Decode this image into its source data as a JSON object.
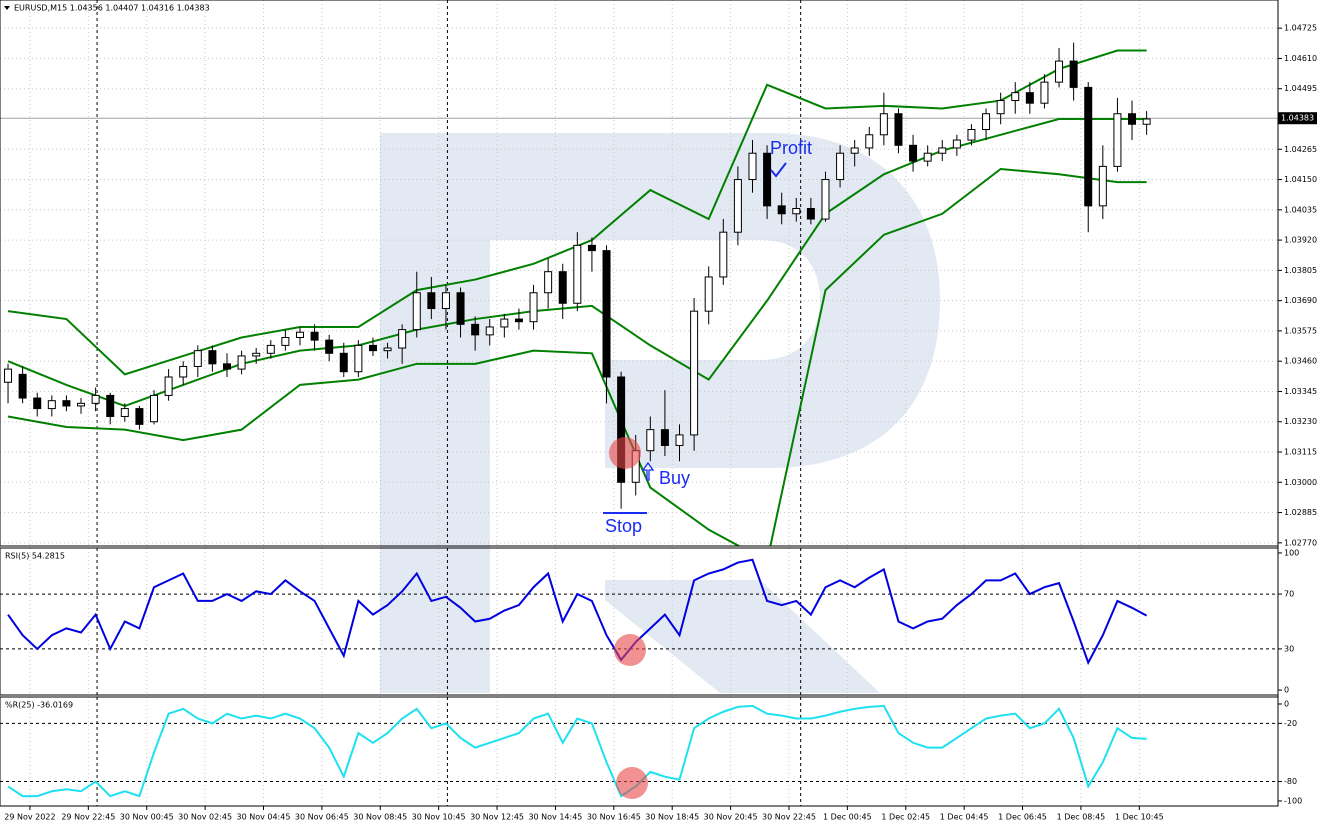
{
  "chart_data": [
    {
      "type": "candlestick",
      "title": "EURUSD,M15  1.04356 1.04407 1.04316 1.04383",
      "xlim": [
        -0.55,
        87
      ],
      "xticks": [
        {
          "value": 1.5,
          "label": "29 Nov 2022"
        },
        {
          "value": 5.5,
          "label": "29 Nov 22:45"
        },
        {
          "value": 9.5,
          "label": "30 Nov 00:45"
        },
        {
          "value": 13.5,
          "label": "30 Nov 02:45"
        },
        {
          "value": 17.5,
          "label": "30 Nov 04:45"
        },
        {
          "value": 21.5,
          "label": "30 Nov 06:45"
        },
        {
          "value": 25.5,
          "label": "30 Nov 08:45"
        },
        {
          "value": 29.5,
          "label": "30 Nov 10:45"
        },
        {
          "value": 33.5,
          "label": "30 Nov 12:45"
        },
        {
          "value": 37.5,
          "label": "30 Nov 14:45"
        },
        {
          "value": 41.5,
          "label": "30 Nov 16:45"
        },
        {
          "value": 45.5,
          "label": "30 Nov 18:45"
        },
        {
          "value": 49.5,
          "label": "30 Nov 20:45"
        },
        {
          "value": 53.5,
          "label": "30 Nov 22:45"
        },
        {
          "value": 57.5,
          "label": "1 Dec 00:45"
        },
        {
          "value": 61.5,
          "label": "1 Dec 02:45"
        },
        {
          "value": 65.5,
          "label": "1 Dec 04:45"
        },
        {
          "value": 69.5,
          "label": "1 Dec 06:45"
        },
        {
          "value": 73.5,
          "label": "1 Dec 08:45"
        },
        {
          "value": 77.5,
          "label": "1 Dec 10:45"
        }
      ],
      "ylim": [
        1.02758,
        1.04832
      ],
      "yticks": [
        1.04725,
        {
          "value": 1.0461,
          "label": "1.04610"
        },
        1.04495,
        1.04265,
        {
          "value": 1.0415,
          "label": "1.04150"
        },
        1.04035,
        {
          "value": 1.0392,
          "label": "1.03920"
        },
        1.03805,
        {
          "value": 1.0369,
          "label": "1.03690"
        },
        1.03575,
        {
          "value": 1.0346,
          "label": "1.03460"
        },
        1.03345,
        {
          "value": 1.0323,
          "label": "1.03230"
        },
        1.03115,
        {
          "value": 1.03,
          "label": "1.03000"
        },
        1.02885,
        {
          "value": 1.0277,
          "label": "1.02770"
        }
      ],
      "grid": true,
      "last_price": 1.04383,
      "separators": [
        6.1,
        30.1,
        54.3
      ],
      "open": [
        1.0338,
        1.0341,
        1.0332,
        1.0328,
        1.0331,
        1.0329,
        1.033,
        1.0333,
        1.0325,
        1.0328,
        1.0323,
        1.0333,
        1.034,
        1.0344,
        1.035,
        1.0345,
        1.0343,
        1.0348,
        1.0349,
        1.0352,
        1.0355,
        1.0357,
        1.0354,
        1.0349,
        1.0342,
        1.0352,
        1.035,
        1.0351,
        1.0358,
        1.0372,
        1.0366,
        1.0372,
        1.036,
        1.0356,
        1.0359,
        1.0362,
        1.0361,
        1.0372,
        1.038,
        1.0368,
        1.039,
        1.0388,
        1.034,
        1.03,
        1.0312,
        1.032,
        1.0314,
        1.0318,
        1.0365,
        1.0378,
        1.0395,
        1.0415,
        1.0425,
        1.0405,
        1.0402,
        1.0404,
        1.04,
        1.0415,
        1.0425,
        1.0427,
        1.0432,
        1.044,
        1.0428,
        1.0422,
        1.0425,
        1.0427,
        1.043,
        1.0434,
        1.044,
        1.0445,
        1.0448,
        1.0444,
        1.0452,
        1.046,
        1.045,
        1.0405,
        1.042,
        1.044,
        1.0436
      ],
      "high": [
        1.0345,
        1.0344,
        1.0334,
        1.0333,
        1.0333,
        1.0332,
        1.0336,
        1.0334,
        1.033,
        1.0329,
        1.0335,
        1.0343,
        1.0346,
        1.0352,
        1.0352,
        1.0349,
        1.035,
        1.0351,
        1.0354,
        1.0358,
        1.0359,
        1.036,
        1.0356,
        1.0353,
        1.0354,
        1.0355,
        1.0353,
        1.036,
        1.038,
        1.0378,
        1.0375,
        1.0374,
        1.0363,
        1.0362,
        1.0364,
        1.0366,
        1.0375,
        1.0385,
        1.0383,
        1.0395,
        1.0393,
        1.039,
        1.0342,
        1.0318,
        1.0325,
        1.0335,
        1.0322,
        1.037,
        1.0382,
        1.04,
        1.042,
        1.043,
        1.0428,
        1.041,
        1.0408,
        1.0408,
        1.0418,
        1.0428,
        1.043,
        1.0435,
        1.0448,
        1.0442,
        1.0432,
        1.0428,
        1.043,
        1.0432,
        1.0436,
        1.0442,
        1.0448,
        1.0452,
        1.0452,
        1.0455,
        1.0465,
        1.0467,
        1.0452,
        1.0428,
        1.0446,
        1.0445,
        1.0441
      ],
      "low": [
        1.033,
        1.033,
        1.0325,
        1.0325,
        1.0327,
        1.0326,
        1.0327,
        1.0322,
        1.0323,
        1.032,
        1.0322,
        1.0331,
        1.0337,
        1.034,
        1.0342,
        1.034,
        1.0341,
        1.0345,
        1.0347,
        1.035,
        1.0352,
        1.035,
        1.0346,
        1.034,
        1.034,
        1.0348,
        1.0347,
        1.0345,
        1.0355,
        1.0362,
        1.0358,
        1.0355,
        1.035,
        1.0352,
        1.0355,
        1.0358,
        1.0358,
        1.0366,
        1.0362,
        1.0365,
        1.038,
        1.033,
        1.029,
        1.0295,
        1.0308,
        1.031,
        1.0308,
        1.0312,
        1.036,
        1.0375,
        1.039,
        1.041,
        1.04,
        1.0398,
        1.0399,
        1.0398,
        1.0399,
        1.0412,
        1.042,
        1.0424,
        1.0428,
        1.0425,
        1.0418,
        1.042,
        1.0422,
        1.0424,
        1.0428,
        1.043,
        1.0436,
        1.044,
        1.044,
        1.0442,
        1.045,
        1.0445,
        1.0395,
        1.04,
        1.0418,
        1.043,
        1.0432
      ],
      "close": [
        1.0343,
        1.0332,
        1.0328,
        1.0331,
        1.0329,
        1.033,
        1.0333,
        1.0325,
        1.0328,
        1.0322,
        1.0333,
        1.034,
        1.0344,
        1.035,
        1.0345,
        1.0343,
        1.0348,
        1.0349,
        1.0352,
        1.0355,
        1.0357,
        1.0354,
        1.0349,
        1.0342,
        1.0352,
        1.035,
        1.0351,
        1.0358,
        1.0372,
        1.0366,
        1.0372,
        1.036,
        1.0356,
        1.0359,
        1.0362,
        1.0361,
        1.0372,
        1.038,
        1.0368,
        1.039,
        1.0388,
        1.034,
        1.03,
        1.0312,
        1.032,
        1.0314,
        1.0318,
        1.0365,
        1.0378,
        1.0395,
        1.0415,
        1.0425,
        1.0405,
        1.0402,
        1.0404,
        1.04,
        1.0415,
        1.0425,
        1.0427,
        1.0432,
        1.044,
        1.0428,
        1.0422,
        1.0425,
        1.0427,
        1.043,
        1.0434,
        1.044,
        1.0445,
        1.0448,
        1.0444,
        1.0452,
        1.046,
        1.045,
        1.0405,
        1.042,
        1.044,
        1.0436,
        1.0438
      ],
      "bands": {
        "color": "#008000",
        "x": [
          0,
          4,
          8,
          12,
          16,
          20,
          24,
          28,
          32,
          36,
          40,
          44,
          48,
          52,
          56,
          60,
          64,
          68,
          72,
          76,
          78
        ],
        "upper": [
          1.0365,
          1.0362,
          1.0341,
          1.0348,
          1.0355,
          1.0359,
          1.0359,
          1.0373,
          1.0377,
          1.0383,
          1.0392,
          1.0411,
          1.04,
          1.0451,
          1.0442,
          1.0443,
          1.0442,
          1.0445,
          1.0457,
          1.0464,
          1.0464
        ],
        "middle": [
          1.0346,
          1.0337,
          1.0329,
          1.0337,
          1.0345,
          1.035,
          1.0352,
          1.0358,
          1.0362,
          1.0365,
          1.0367,
          1.0352,
          1.0339,
          1.0369,
          1.0402,
          1.0417,
          1.0426,
          1.0432,
          1.0438,
          1.0438,
          1.0438
        ],
        "lower": [
          1.0325,
          1.0321,
          1.032,
          1.0316,
          1.032,
          1.0337,
          1.0339,
          1.0345,
          1.0345,
          1.035,
          1.0349,
          1.0298,
          1.0282,
          1.027,
          1.0373,
          1.0394,
          1.0402,
          1.0419,
          1.0417,
          1.0414,
          1.0414
        ]
      },
      "annotations": {
        "profit": "Profit",
        "buy": "Buy",
        "stop": "Stop"
      }
    },
    {
      "type": "line",
      "title": "RSI(5) 54.2815",
      "color": "#0000e0",
      "ylim": [
        -3.6,
        103.6
      ],
      "yticks": [
        100,
        70,
        30,
        0
      ],
      "levels": [
        70,
        30
      ],
      "values": [
        55,
        40,
        30,
        40,
        45,
        42,
        55,
        30,
        50,
        45,
        75,
        80,
        85,
        65,
        65,
        70,
        65,
        72,
        70,
        80,
        72,
        65,
        45,
        25,
        65,
        55,
        62,
        72,
        85,
        65,
        68,
        60,
        50,
        52,
        58,
        62,
        75,
        85,
        50,
        70,
        65,
        40,
        22,
        35,
        45,
        55,
        40,
        80,
        85,
        88,
        93,
        95,
        65,
        62,
        65,
        55,
        75,
        80,
        75,
        82,
        88,
        50,
        45,
        50,
        52,
        62,
        70,
        80,
        80,
        85,
        70,
        75,
        78,
        50,
        20,
        40,
        65,
        60,
        54.2815
      ]
    },
    {
      "type": "line",
      "title": "%R(25) -36.0169",
      "color": "#1ee0f0",
      "ylim": [
        -105.2,
        7.2
      ],
      "yticks": [
        0,
        -20,
        -80,
        -100
      ],
      "levels": [
        -20,
        -80
      ],
      "values": [
        -85,
        -95,
        -95,
        -90,
        -88,
        -90,
        -80,
        -95,
        -90,
        -95,
        -50,
        -10,
        -5,
        -15,
        -20,
        -10,
        -15,
        -12,
        -15,
        -10,
        -15,
        -25,
        -45,
        -75,
        -30,
        -40,
        -30,
        -15,
        -5,
        -25,
        -20,
        -35,
        -45,
        -40,
        -35,
        -30,
        -15,
        -10,
        -40,
        -15,
        -20,
        -60,
        -95,
        -85,
        -70,
        -75,
        -78,
        -25,
        -15,
        -8,
        -3,
        -2,
        -10,
        -12,
        -15,
        -15,
        -12,
        -8,
        -5,
        -3,
        -2,
        -30,
        -40,
        -45,
        -45,
        -35,
        -25,
        -15,
        -12,
        -10,
        -25,
        -20,
        -5,
        -35,
        -85,
        -60,
        -25,
        -35,
        -36.0169
      ]
    }
  ]
}
